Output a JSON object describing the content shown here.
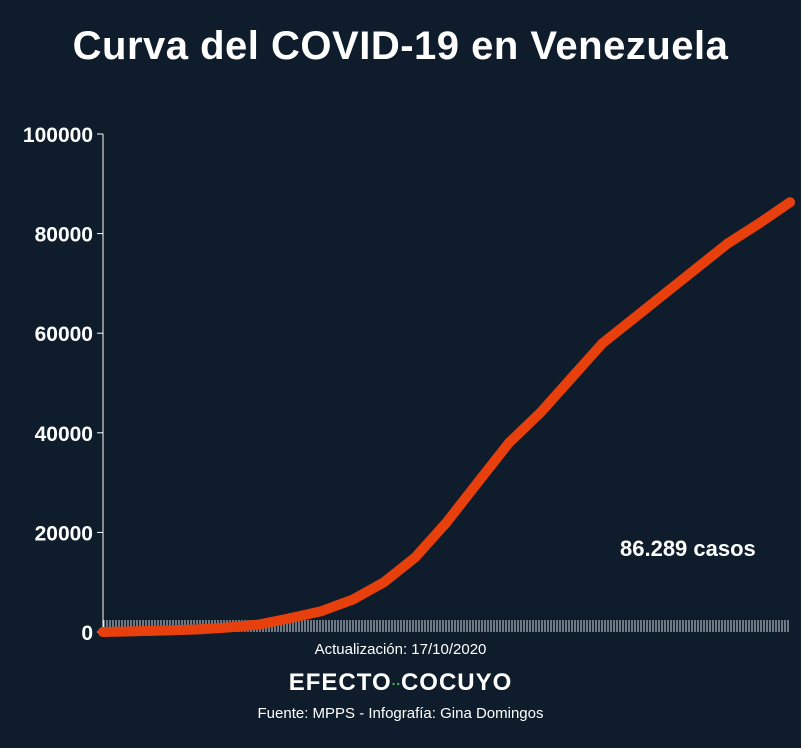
{
  "title": "Curva del COVID-19 en Venezuela",
  "chart_data": {
    "type": "line",
    "ylim": [
      0,
      100000
    ],
    "yticks": [
      "100000",
      "80000",
      "60000",
      "40000",
      "20000",
      "0"
    ],
    "ytick_values": [
      100000,
      80000,
      60000,
      40000,
      20000,
      0
    ],
    "series_color": "#e8400c",
    "annotation": "86.289 casos",
    "x": [
      0,
      10,
      20,
      30,
      40,
      50,
      60,
      70,
      80,
      90,
      100,
      110,
      120,
      130,
      140,
      150,
      160,
      170,
      180,
      190,
      200,
      210,
      220
    ],
    "values": [
      0,
      150,
      300,
      500,
      900,
      1500,
      2800,
      4200,
      6500,
      10000,
      15000,
      22000,
      30000,
      38000,
      44000,
      51000,
      58000,
      63000,
      68000,
      73000,
      78000,
      82000,
      86289
    ]
  },
  "footer": {
    "updated": "Actualización: 17/10/2020",
    "logo_left": "EFECTO",
    "logo_dots": "··",
    "logo_right": "COCUYO",
    "source": "Fuente: MPPS - Infografía: Gina Domingos"
  }
}
